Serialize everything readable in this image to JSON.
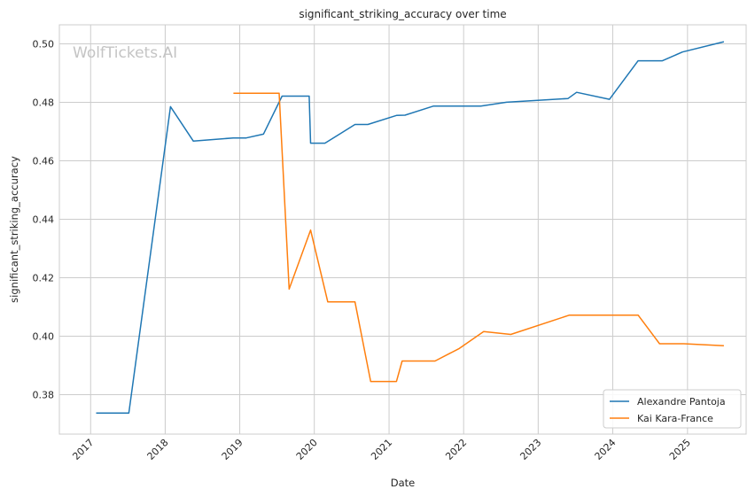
{
  "chart_data": {
    "type": "line",
    "title": "significant_striking_accuracy over time",
    "xlabel": "Date",
    "ylabel": "significant_striking_accuracy",
    "watermark": "WolfTickets.AI",
    "xlim": [
      "2016-08-01",
      "2025-10-15"
    ],
    "ylim": [
      0.3665,
      0.5065
    ],
    "x_ticks": [
      "2017",
      "2018",
      "2019",
      "2020",
      "2021",
      "2022",
      "2023",
      "2024",
      "2025"
    ],
    "y_ticks": [
      "0.38",
      "0.40",
      "0.42",
      "0.44",
      "0.46",
      "0.48",
      "0.50"
    ],
    "grid": true,
    "legend": "lower-right",
    "series": [
      {
        "name": "Alexandre Pantoja",
        "color": "#1f77b4",
        "points": [
          [
            "2017-01-28",
            0.3737
          ],
          [
            "2017-07-07",
            0.3737
          ],
          [
            "2018-01-27",
            0.4785
          ],
          [
            "2018-05-19",
            0.4667
          ],
          [
            "2018-11-30",
            0.4678
          ],
          [
            "2019-02-02",
            0.4678
          ],
          [
            "2019-04-27",
            0.4691
          ],
          [
            "2019-07-27",
            0.4821
          ],
          [
            "2019-12-07",
            0.4821
          ],
          [
            "2019-12-14",
            0.466
          ],
          [
            "2020-02-22",
            0.466
          ],
          [
            "2020-07-18",
            0.4724
          ],
          [
            "2020-09-19",
            0.4724
          ],
          [
            "2021-02-06",
            0.4755
          ],
          [
            "2021-03-20",
            0.4756
          ],
          [
            "2021-08-07",
            0.4787
          ],
          [
            "2022-03-26",
            0.4787
          ],
          [
            "2022-07-30",
            0.48
          ],
          [
            "2023-05-27",
            0.4813
          ],
          [
            "2023-07-08",
            0.4834
          ],
          [
            "2023-12-16",
            0.481
          ],
          [
            "2024-05-04",
            0.4942
          ],
          [
            "2024-08-31",
            0.4942
          ],
          [
            "2024-12-07",
            0.4972
          ],
          [
            "2025-06-28",
            0.5007
          ]
        ]
      },
      {
        "name": "Kai Kara-France",
        "color": "#ff7f0e",
        "points": [
          [
            "2018-12-01",
            0.4831
          ],
          [
            "2019-07-13",
            0.4831
          ],
          [
            "2019-08-31",
            0.4161
          ],
          [
            "2019-12-14",
            0.4363
          ],
          [
            "2020-03-07",
            0.4117
          ],
          [
            "2020-07-18",
            0.4117
          ],
          [
            "2020-10-03",
            0.3845
          ],
          [
            "2021-02-06",
            0.3845
          ],
          [
            "2021-03-06",
            0.3915
          ],
          [
            "2021-08-14",
            0.3915
          ],
          [
            "2021-12-11",
            0.3958
          ],
          [
            "2022-04-09",
            0.4016
          ],
          [
            "2022-08-20",
            0.4006
          ],
          [
            "2023-06-03",
            0.4072
          ],
          [
            "2024-05-04",
            0.4072
          ],
          [
            "2024-08-17",
            0.3974
          ],
          [
            "2024-12-14",
            0.3974
          ],
          [
            "2025-06-28",
            0.3967
          ]
        ]
      }
    ]
  }
}
